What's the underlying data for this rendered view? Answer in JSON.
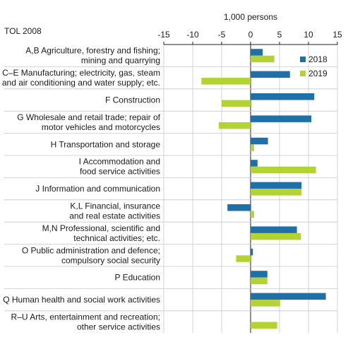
{
  "chart_data": {
    "type": "bar",
    "orientation": "horizontal",
    "unit_label": "1,000 persons",
    "category_header": "TOL 2008",
    "xlim": [
      -15,
      15
    ],
    "ticks": [
      "-15",
      "-10",
      "-5",
      "0",
      "5",
      "10",
      "15"
    ],
    "grid": true,
    "legend_position": "top-right",
    "categories": [
      [
        "A,B Agriculture, forestry and fishing;",
        "mining and quarrying"
      ],
      [
        "C–E Manufacturing; electricity, gas, steam",
        "and air conditioning and water supply; etc."
      ],
      [
        "F Construction"
      ],
      [
        "G Wholesale and retail trade; repair of",
        "motor vehicles and motorcycles"
      ],
      [
        "H Transportation and storage"
      ],
      [
        "I Accommodation and",
        "food service activities"
      ],
      [
        "J Information and communication"
      ],
      [
        "K,L Financial, insurance",
        "and real estate activities"
      ],
      [
        "M,N Professional, scientific and",
        "technical activities; etc."
      ],
      [
        "O Public administration and defence;",
        "compulsory social security"
      ],
      [
        "P Education"
      ],
      [
        "Q Human health and social work activities"
      ],
      [
        "R–U Arts, entertainment and recreation;",
        "other service activities"
      ]
    ],
    "series": [
      {
        "name": "2018",
        "color": "#1f6fa8",
        "values": [
          2.1,
          6.8,
          11.0,
          10.5,
          3.0,
          1.2,
          8.8,
          -4.0,
          8.0,
          0.4,
          2.9,
          13.0,
          0.0
        ]
      },
      {
        "name": "2019",
        "color": "#b3d334",
        "values": [
          4.1,
          -8.5,
          -5.0,
          -5.5,
          0.6,
          11.3,
          8.8,
          0.6,
          8.7,
          -2.5,
          2.9,
          5.1,
          4.6
        ]
      }
    ]
  }
}
